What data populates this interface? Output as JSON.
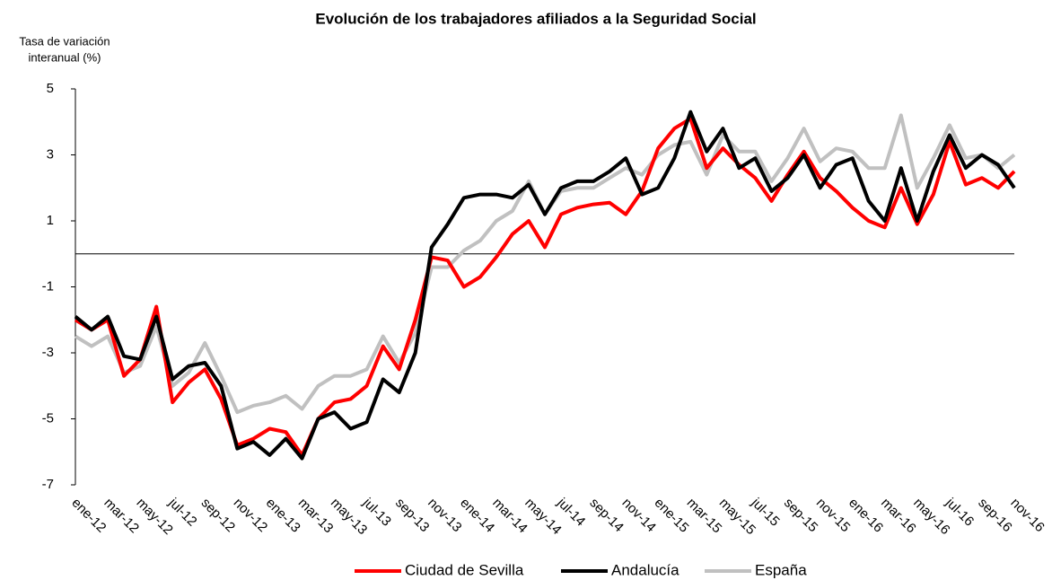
{
  "chart_data": {
    "type": "line",
    "title": "Evolución de los trabajadores afiliados a la Seguridad Social",
    "y_label": [
      "Tasa de variación",
      "interanual (%)"
    ],
    "categories": [
      "ene-12",
      null,
      "mar-12",
      null,
      "may-12",
      null,
      "jul-12",
      null,
      "sep-12",
      null,
      "nov-12",
      null,
      "ene-13",
      null,
      "mar-13",
      null,
      "may-13",
      null,
      "jul-13",
      null,
      "sep-13",
      null,
      "nov-13",
      null,
      "ene-14",
      null,
      "mar-14",
      null,
      "may-14",
      null,
      "jul-14",
      null,
      "sep-14",
      null,
      "nov-14",
      null,
      "ene-15",
      null,
      "mar-15",
      null,
      "may-15",
      null,
      "jul-15",
      null,
      "sep-15",
      null,
      "nov-15",
      null,
      "ene-16",
      null,
      "mar-16",
      null,
      "may-16",
      null,
      "jul-16",
      null,
      "sep-16",
      null,
      "nov-16"
    ],
    "series": [
      {
        "name": "Ciudad de Sevilla",
        "color": "#ff0000",
        "values": [
          -2.0,
          -2.3,
          -2.0,
          -3.7,
          -3.2,
          -1.6,
          -4.5,
          -3.9,
          -3.5,
          -4.4,
          -5.8,
          -5.6,
          -5.3,
          -5.4,
          -6.1,
          -5.0,
          -4.5,
          -4.4,
          -4.0,
          -2.8,
          -3.5,
          -2.0,
          -0.1,
          -0.2,
          -1.0,
          -0.7,
          -0.1,
          0.6,
          1.0,
          0.2,
          1.2,
          1.4,
          1.5,
          1.55,
          1.2,
          1.9,
          3.2,
          3.8,
          4.1,
          2.6,
          3.2,
          2.7,
          2.3,
          1.6,
          2.4,
          3.1,
          2.3,
          1.9,
          1.4,
          1.0,
          0.8,
          2.0,
          0.9,
          1.8,
          3.4,
          2.1,
          2.3,
          2.0,
          2.5
        ]
      },
      {
        "name": "Andalucía",
        "color": "#000000",
        "values": [
          -1.9,
          -2.3,
          -1.9,
          -3.1,
          -3.2,
          -1.9,
          -3.8,
          -3.4,
          -3.3,
          -4.0,
          -5.9,
          -5.7,
          -6.1,
          -5.6,
          -6.2,
          -5.0,
          -4.8,
          -5.3,
          -5.1,
          -3.8,
          -4.2,
          -3.0,
          0.2,
          0.9,
          1.7,
          1.8,
          1.8,
          1.7,
          2.1,
          1.2,
          2.0,
          2.2,
          2.2,
          2.5,
          2.9,
          1.8,
          2.0,
          2.9,
          4.3,
          3.1,
          3.8,
          2.6,
          2.9,
          1.9,
          2.3,
          3.0,
          2.0,
          2.7,
          2.9,
          1.6,
          1.0,
          2.6,
          1.0,
          2.5,
          3.6,
          2.6,
          3.0,
          2.7,
          2.0
        ]
      },
      {
        "name": "España",
        "color": "#c0c0c0",
        "values": [
          -2.5,
          -2.8,
          -2.5,
          -3.6,
          -3.4,
          -2.2,
          -4.0,
          -3.6,
          -2.7,
          -3.7,
          -4.8,
          -4.6,
          -4.5,
          -4.3,
          -4.7,
          -4.0,
          -3.7,
          -3.7,
          -3.5,
          -2.5,
          -3.3,
          -2.4,
          -0.4,
          -0.4,
          0.1,
          0.4,
          1.0,
          1.3,
          2.2,
          1.2,
          1.9,
          2.0,
          2.0,
          2.3,
          2.6,
          2.4,
          3.0,
          3.3,
          3.4,
          2.4,
          3.6,
          3.1,
          3.1,
          2.2,
          2.9,
          3.8,
          2.8,
          3.2,
          3.1,
          2.6,
          2.6,
          4.2,
          2.0,
          2.9,
          3.9,
          2.9,
          3.0,
          2.6,
          3.0
        ]
      }
    ],
    "ylim": [
      -7,
      5
    ],
    "yticks": [
      5,
      3,
      1,
      -1,
      -3,
      -5,
      -7
    ],
    "legend": "bottom"
  }
}
